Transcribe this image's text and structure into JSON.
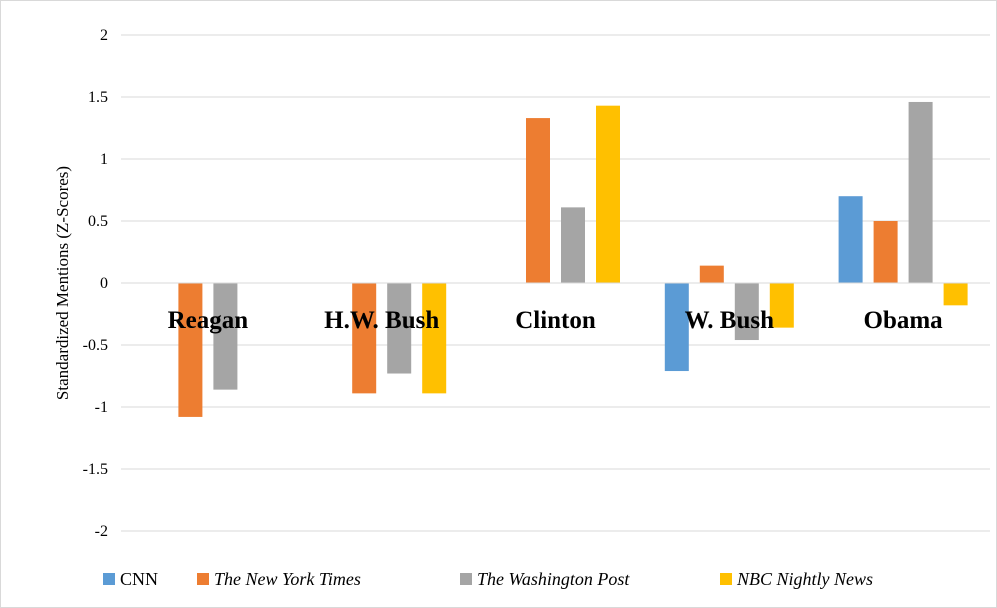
{
  "chart_data": {
    "type": "bar",
    "title": "",
    "xlabel": "",
    "ylabel": "Standardized Mentions (Z-Scores)",
    "ylim": [
      -2,
      2
    ],
    "yticks": [
      2,
      1.5,
      1,
      0.5,
      0,
      -0.5,
      -1,
      -1.5,
      -2
    ],
    "ytick_labels": [
      "2",
      "1.5",
      "1",
      "0.5",
      "0",
      "-0.5",
      "-1",
      "-1.5",
      "-2"
    ],
    "grid": true,
    "legend_position": "bottom",
    "categories": [
      "Reagan",
      "H.W. Bush",
      "Clinton",
      "W. Bush",
      "Obama"
    ],
    "series": [
      {
        "name": "CNN",
        "italic": false,
        "color": "#5b9bd5",
        "values": [
          0,
          0,
          0,
          -0.71,
          0.7
        ]
      },
      {
        "name": "The New York Times",
        "italic": true,
        "color": "#ed7d31",
        "values": [
          -1.08,
          -0.89,
          1.33,
          0.14,
          0.5
        ]
      },
      {
        "name": "The Washington Post",
        "italic": true,
        "color": "#a5a5a5",
        "values": [
          -0.86,
          -0.73,
          0.61,
          -0.46,
          1.46
        ]
      },
      {
        "name": "NBC Nightly News",
        "italic": true,
        "color": "#ffc000",
        "values": [
          0,
          -0.89,
          1.43,
          -0.36,
          -0.18
        ]
      }
    ]
  }
}
